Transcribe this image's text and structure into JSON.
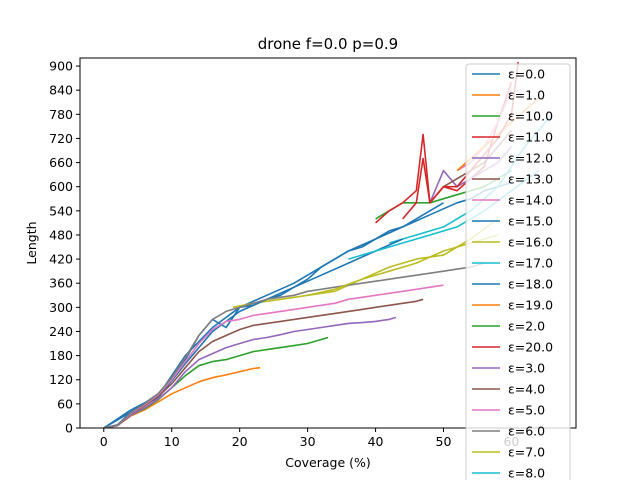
{
  "chart_data": {
    "type": "line",
    "title": "drone f=0.0 p=0.9",
    "xlabel": "Coverage (%)",
    "ylabel": "Length",
    "xlim": [
      -3.5,
      69.5
    ],
    "ylim": [
      0,
      920
    ],
    "xticks": [
      0,
      10,
      20,
      30,
      40,
      50,
      60
    ],
    "yticks": [
      0,
      60,
      120,
      180,
      240,
      300,
      360,
      420,
      480,
      540,
      600,
      660,
      720,
      780,
      840,
      900
    ],
    "grid": false,
    "legend_position": "upper-right",
    "series": [
      {
        "name": "ε=0.0",
        "color": "#1f77b4",
        "x": [
          0,
          2,
          4,
          6,
          8,
          10,
          12,
          14,
          16,
          18,
          20,
          22,
          24,
          26,
          28,
          30,
          32,
          34,
          36,
          38,
          40,
          42,
          44,
          46,
          48,
          50,
          52,
          54,
          56,
          58,
          60
        ],
        "y": [
          0,
          8,
          40,
          62,
          85,
          120,
          170,
          230,
          270,
          250,
          300,
          305,
          320,
          330,
          350,
          370,
          400,
          420,
          440,
          450,
          470,
          490,
          500,
          515,
          530,
          545,
          560,
          570,
          590,
          600,
          610
        ]
      },
      {
        "name": "ε=1.0",
        "color": "#ff7f0e",
        "x": [
          0,
          2,
          4,
          6,
          8,
          10,
          12,
          14,
          16,
          18,
          20,
          22,
          23
        ],
        "y": [
          0,
          6,
          30,
          45,
          65,
          85,
          100,
          115,
          125,
          132,
          140,
          148,
          150
        ]
      },
      {
        "name": "ε=10.0",
        "color": "#2ca02c",
        "x": [
          40,
          44,
          48,
          52,
          56,
          60
        ],
        "y": [
          520,
          560,
          560,
          580,
          600,
          640
        ]
      },
      {
        "name": "ε=11.0",
        "color": "#d62728",
        "x": [
          44,
          46,
          47,
          48,
          50,
          52,
          54,
          56,
          58,
          60
        ],
        "y": [
          520,
          560,
          670,
          560,
          600,
          590,
          620,
          650,
          760,
          860
        ]
      },
      {
        "name": "ε=12.0",
        "color": "#9467bd",
        "x": [
          48,
          50,
          52,
          54,
          56,
          58,
          60
        ],
        "y": [
          560,
          640,
          600,
          620,
          640,
          660,
          700
        ]
      },
      {
        "name": "ε=13.0",
        "color": "#8c564b",
        "x": [
          50,
          52,
          54,
          56,
          58,
          60
        ],
        "y": [
          600,
          620,
          640,
          660,
          700,
          740
        ]
      },
      {
        "name": "ε=14.0",
        "color": "#e377c2",
        "x": [
          52,
          54,
          56,
          58,
          60
        ],
        "y": [
          640,
          660,
          700,
          760,
          840
        ]
      },
      {
        "name": "ε=15.0",
        "color": "#1f77b4",
        "x": [
          0,
          4,
          8,
          12,
          16,
          20,
          24,
          28,
          32,
          36,
          40,
          44,
          48,
          50
        ],
        "y": [
          0,
          45,
          80,
          180,
          250,
          300,
          330,
          360,
          400,
          440,
          470,
          500,
          540,
          560
        ]
      },
      {
        "name": "ε=16.0",
        "color": "#bcbd22",
        "x": [
          19,
          22,
          26,
          30,
          34,
          38,
          42,
          46,
          50,
          54,
          58
        ],
        "y": [
          300,
          310,
          320,
          330,
          340,
          370,
          400,
          420,
          430,
          470,
          520
        ]
      },
      {
        "name": "ε=17.0",
        "color": "#17becf",
        "x": [
          42,
          46,
          50,
          54,
          58,
          62,
          66
        ],
        "y": [
          460,
          480,
          500,
          540,
          600,
          700,
          780
        ]
      },
      {
        "name": "ε=18.0",
        "color": "#1f77b4",
        "x": [
          0,
          4,
          8,
          12,
          16,
          20,
          24,
          28,
          32,
          36,
          40,
          44
        ],
        "y": [
          0,
          40,
          75,
          160,
          240,
          290,
          320,
          350,
          380,
          410,
          440,
          470
        ]
      },
      {
        "name": "ε=19.0",
        "color": "#ff7f0e",
        "x": [
          52,
          56,
          60,
          64
        ],
        "y": [
          640,
          700,
          760,
          820
        ]
      },
      {
        "name": "ε=2.0",
        "color": "#2ca02c",
        "x": [
          0,
          2,
          4,
          6,
          8,
          10,
          12,
          14,
          16,
          18,
          20,
          22,
          24,
          26,
          28,
          30,
          32,
          33
        ],
        "y": [
          0,
          6,
          32,
          48,
          70,
          100,
          130,
          155,
          165,
          170,
          180,
          190,
          195,
          200,
          205,
          210,
          220,
          225
        ]
      },
      {
        "name": "ε=20.0",
        "color": "#d62728",
        "x": [
          40,
          42,
          44,
          46,
          47,
          48,
          50,
          52,
          54,
          56,
          58,
          60,
          61
        ],
        "y": [
          510,
          540,
          560,
          590,
          730,
          560,
          600,
          600,
          640,
          680,
          720,
          780,
          910
        ]
      },
      {
        "name": "ε=3.0",
        "color": "#9467bd",
        "x": [
          0,
          2,
          4,
          6,
          8,
          10,
          12,
          14,
          16,
          18,
          20,
          22,
          24,
          26,
          28,
          30,
          32,
          34,
          36,
          38,
          40,
          42,
          43
        ],
        "y": [
          0,
          6,
          32,
          50,
          72,
          100,
          140,
          170,
          185,
          200,
          210,
          220,
          225,
          232,
          240,
          245,
          250,
          255,
          260,
          262,
          265,
          270,
          275
        ]
      },
      {
        "name": "ε=4.0",
        "color": "#8c564b",
        "x": [
          0,
          2,
          4,
          6,
          8,
          10,
          12,
          14,
          16,
          18,
          20,
          22,
          24,
          26,
          28,
          30,
          32,
          34,
          36,
          38,
          40,
          42,
          44,
          46,
          47
        ],
        "y": [
          0,
          6,
          35,
          55,
          78,
          110,
          150,
          190,
          215,
          230,
          245,
          255,
          260,
          265,
          270,
          275,
          280,
          285,
          290,
          295,
          300,
          305,
          310,
          315,
          320
        ]
      },
      {
        "name": "ε=5.0",
        "color": "#e377c2",
        "x": [
          0,
          2,
          4,
          6,
          8,
          10,
          12,
          14,
          16,
          18,
          20,
          22,
          24,
          26,
          28,
          30,
          32,
          34,
          36,
          38,
          40,
          42,
          44,
          46,
          48,
          50
        ],
        "y": [
          0,
          7,
          36,
          58,
          82,
          120,
          165,
          210,
          245,
          265,
          270,
          280,
          285,
          290,
          295,
          300,
          305,
          310,
          320,
          325,
          330,
          335,
          340,
          345,
          350,
          355
        ]
      },
      {
        "name": "ε=6.0",
        "color": "#7f7f7f",
        "x": [
          0,
          2,
          4,
          6,
          8,
          10,
          12,
          14,
          16,
          18,
          20,
          22,
          24,
          26,
          28,
          30,
          32,
          34,
          36,
          38,
          40,
          42,
          44,
          46,
          48,
          50,
          52,
          54,
          56
        ],
        "y": [
          0,
          7,
          38,
          60,
          85,
          125,
          175,
          230,
          270,
          290,
          300,
          310,
          320,
          325,
          330,
          340,
          345,
          350,
          355,
          360,
          365,
          370,
          375,
          380,
          385,
          390,
          395,
          400,
          410
        ]
      },
      {
        "name": "ε=7.0",
        "color": "#bcbd22",
        "x": [
          30,
          34,
          38,
          42,
          46,
          50,
          54,
          58
        ],
        "y": [
          330,
          345,
          370,
          390,
          410,
          440,
          460,
          480
        ]
      },
      {
        "name": "ε=8.0",
        "color": "#17becf",
        "x": [
          36,
          40,
          44,
          48,
          52,
          56,
          60,
          64
        ],
        "y": [
          420,
          440,
          460,
          480,
          500,
          540,
          590,
          640
        ]
      }
    ]
  }
}
